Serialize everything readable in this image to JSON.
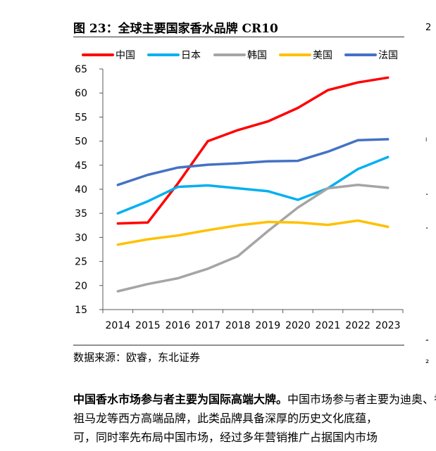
{
  "figure": {
    "title": "图 23：全球主要国家香水品牌 CR10",
    "source": "数据来源：欧睿，东北证券"
  },
  "chart_data": {
    "type": "line",
    "title": "全球主要国家香水品牌 CR10",
    "xlabel": "",
    "ylabel": "",
    "ylim": [
      15,
      65
    ],
    "yticks": [
      15,
      20,
      25,
      30,
      35,
      40,
      45,
      50,
      55,
      60,
      65
    ],
    "categories": [
      "2014",
      "2015",
      "2016",
      "2017",
      "2018",
      "2019",
      "2020",
      "2021",
      "2022",
      "2023"
    ],
    "legend_position": "top",
    "grid": false,
    "series": [
      {
        "name": "中国",
        "color": "#ff0000",
        "values": [
          32.9,
          33.1,
          41.2,
          50.0,
          52.3,
          54.1,
          56.9,
          60.6,
          62.2,
          63.2
        ]
      },
      {
        "name": "日本",
        "color": "#00b0f0",
        "values": [
          35.0,
          37.5,
          40.5,
          40.8,
          40.2,
          39.6,
          37.8,
          40.2,
          44.2,
          46.7
        ]
      },
      {
        "name": "韩国",
        "color": "#a5a5a5",
        "values": [
          18.8,
          20.3,
          21.5,
          23.5,
          26.1,
          31.3,
          36.2,
          40.2,
          40.9,
          40.3
        ]
      },
      {
        "name": "美国",
        "color": "#ffc000",
        "values": [
          28.5,
          29.6,
          30.4,
          31.5,
          32.5,
          33.2,
          33.1,
          32.6,
          33.5,
          32.2
        ]
      },
      {
        "name": "法国",
        "color": "#4472c4",
        "values": [
          40.9,
          43.0,
          44.5,
          45.1,
          45.4,
          45.8,
          45.9,
          47.8,
          50.2,
          50.4
        ]
      }
    ]
  },
  "body_text": {
    "para_1_bold": "中国香水市场参与者主要为国际高端大牌。",
    "para_1_rest": "中国市场参与者主要为迪奥、香奈儿、",
    "para_2": "祖马龙等西方高端品牌，此类品牌具备深厚的历史文化底蕴，",
    "para_3": "可，同时率先布局中国市场，经过多年营销推广占据国内市场"
  },
  "margin_marks": [
    "2",
    "ₗ",
    "·",
    "·",
    "-",
    "₂"
  ]
}
